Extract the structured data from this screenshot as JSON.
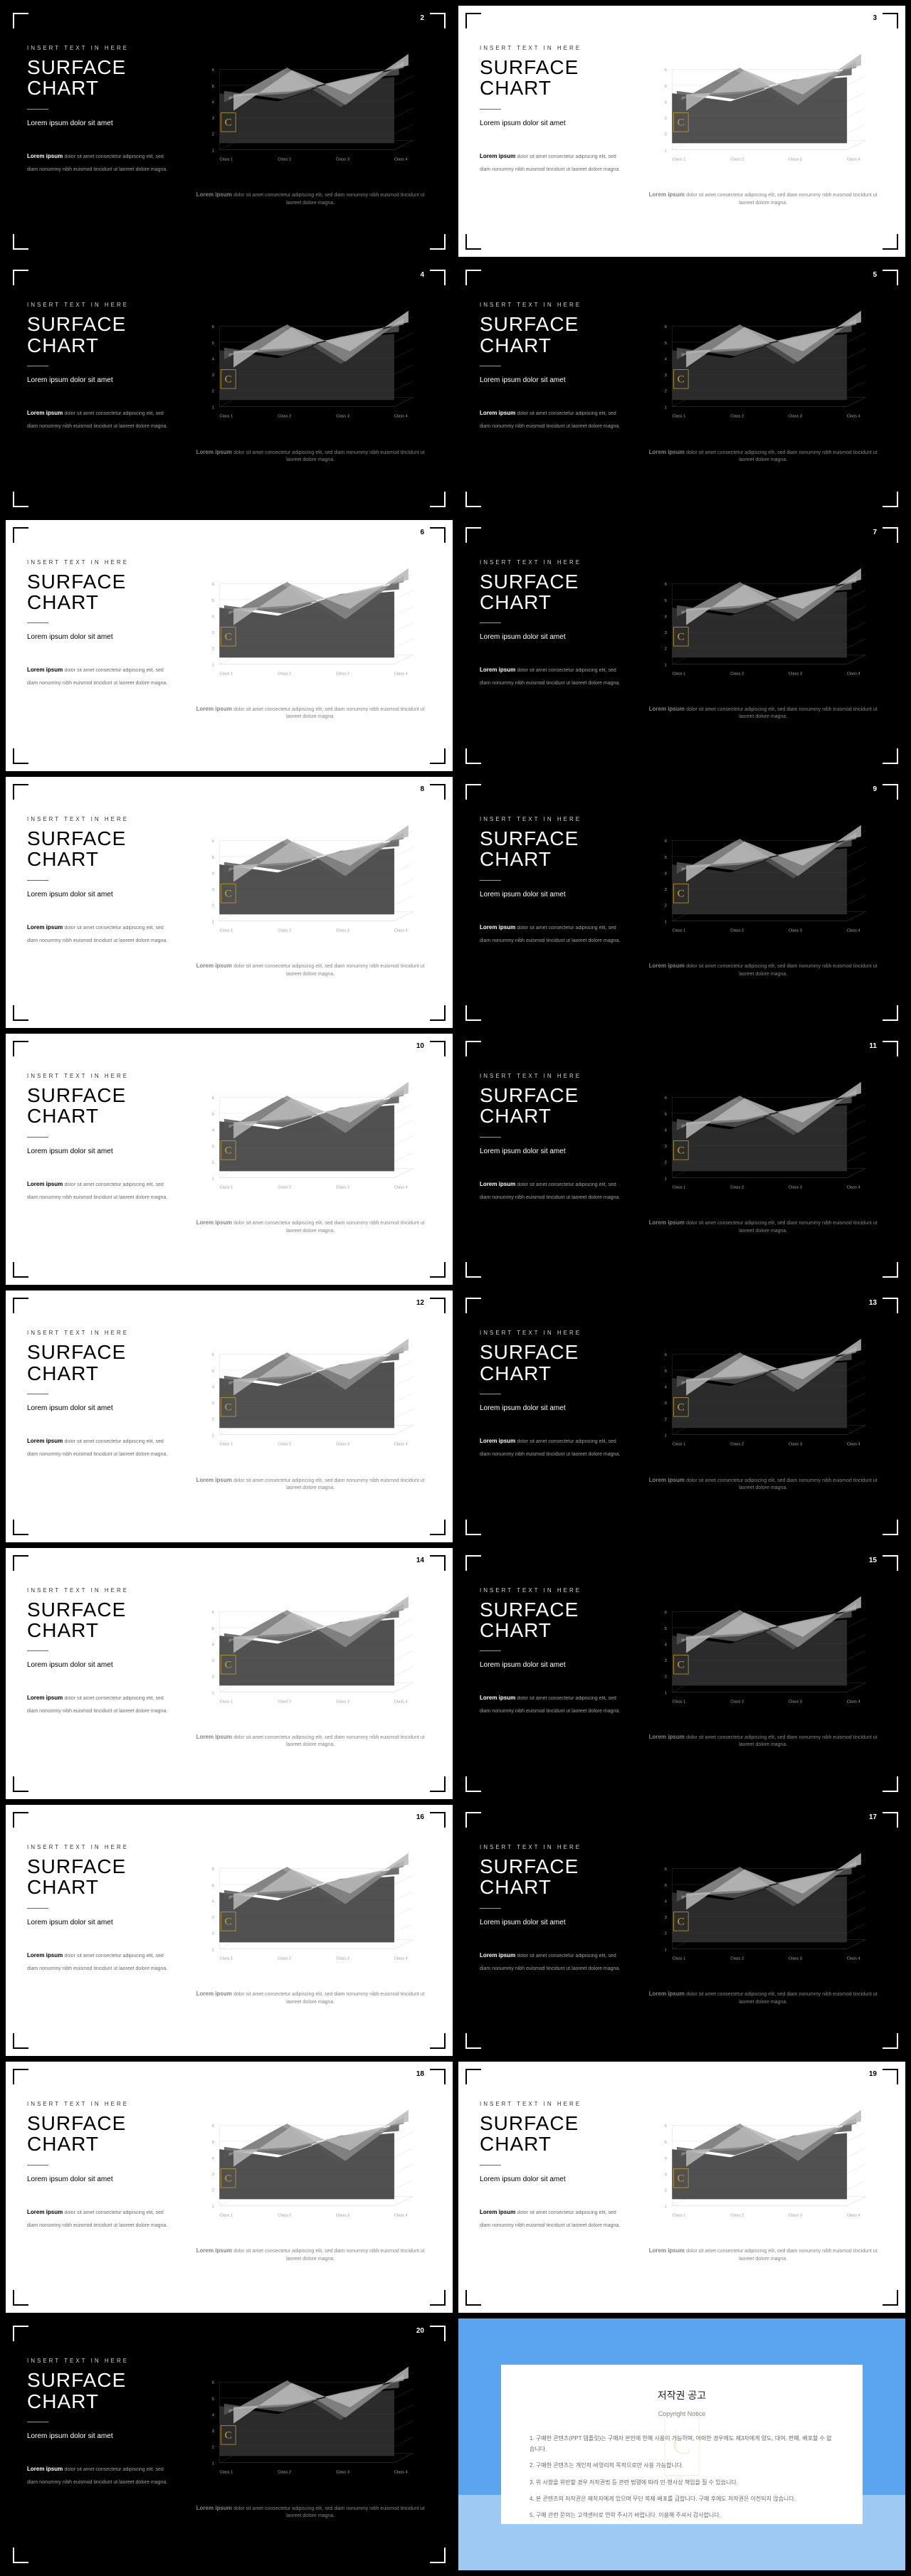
{
  "common": {
    "insert": "INSERT TEXT IN HERE",
    "title": "SURFACE\nCHART",
    "subtitle": "Lorem ipsum dolor sit amet",
    "desc_label": "Lorem ipsum ",
    "desc_text": "dolor sit amet consectetur adipiscing elit, sed diam nonummy nibh euismod tincidunt ut laoreet dolore magna.",
    "chart_desc": "dolor sit amet consectetur adipiscing elit, sed diam nonummy nibh euismod tincidunt ut laoreet dolore magna."
  },
  "chart": {
    "type": "surface_3d",
    "categories": [
      "Class 1",
      "Class 2",
      "Class 3",
      "Class 4"
    ],
    "y_values": [
      1,
      2,
      3,
      4,
      5,
      6
    ],
    "series": [
      {
        "label": "S1",
        "values": [
          2.0,
          4.5,
          3.0,
          5.5
        ],
        "fill": "#b8b8b8"
      },
      {
        "label": "S2",
        "values": [
          3.0,
          3.2,
          4.0,
          4.8
        ],
        "fill": "#888888"
      },
      {
        "label": "S3",
        "values": [
          2.8,
          4.8,
          2.5,
          5.2
        ],
        "fill": "#555555"
      },
      {
        "label": "S4",
        "values": [
          3.5,
          3.0,
          4.2,
          4.5
        ],
        "fill": "#333333"
      }
    ],
    "grid_color_light": "#dddddd",
    "grid_color_dark": "#333333",
    "axis_font_size": 6,
    "badge": {
      "text": "C",
      "color": "#c8a030"
    }
  },
  "slides": [
    {
      "num": "2",
      "theme": "dark"
    },
    {
      "num": "3",
      "theme": "light"
    },
    {
      "num": "4",
      "theme": "dark"
    },
    {
      "num": "5",
      "theme": "dark"
    },
    {
      "num": "6",
      "theme": "light"
    },
    {
      "num": "7",
      "theme": "dark"
    },
    {
      "num": "8",
      "theme": "light"
    },
    {
      "num": "9",
      "theme": "dark"
    },
    {
      "num": "10",
      "theme": "light"
    },
    {
      "num": "11",
      "theme": "dark"
    },
    {
      "num": "12",
      "theme": "light"
    },
    {
      "num": "13",
      "theme": "dark"
    },
    {
      "num": "14",
      "theme": "light"
    },
    {
      "num": "15",
      "theme": "dark"
    },
    {
      "num": "16",
      "theme": "light"
    },
    {
      "num": "17",
      "theme": "dark"
    },
    {
      "num": "18",
      "theme": "light"
    },
    {
      "num": "19",
      "theme": "light"
    },
    {
      "num": "20",
      "theme": "dark"
    }
  ],
  "copyright": {
    "title": "저작권 공고",
    "subtitle": "Copyright Notice",
    "lines": [
      "1. 구매한 콘텐츠(PPT 템플릿)는 구매자 본인에 한해 사용이 가능하며, 어떠한 경우에도 제3자에게 양도, 대여, 판매, 배포할 수 없습니다.",
      "2. 구매한 콘텐츠는 개인적·비영리적 목적으로만 사용 가능합니다.",
      "3. 위 사항을 위반할 경우 저작권법 등 관련 법령에 따라 민·형사상 책임을 질 수 있습니다.",
      "4. 본 콘텐츠의 저작권은 제작자에게 있으며 무단 복제·배포를 금합니다. 구매 후에도 저작권은 이전되지 않습니다.",
      "5. 구매 관련 문의는 고객센터로 연락 주시기 바랍니다. 이용해 주셔서 감사합니다."
    ],
    "watermark": "C"
  }
}
